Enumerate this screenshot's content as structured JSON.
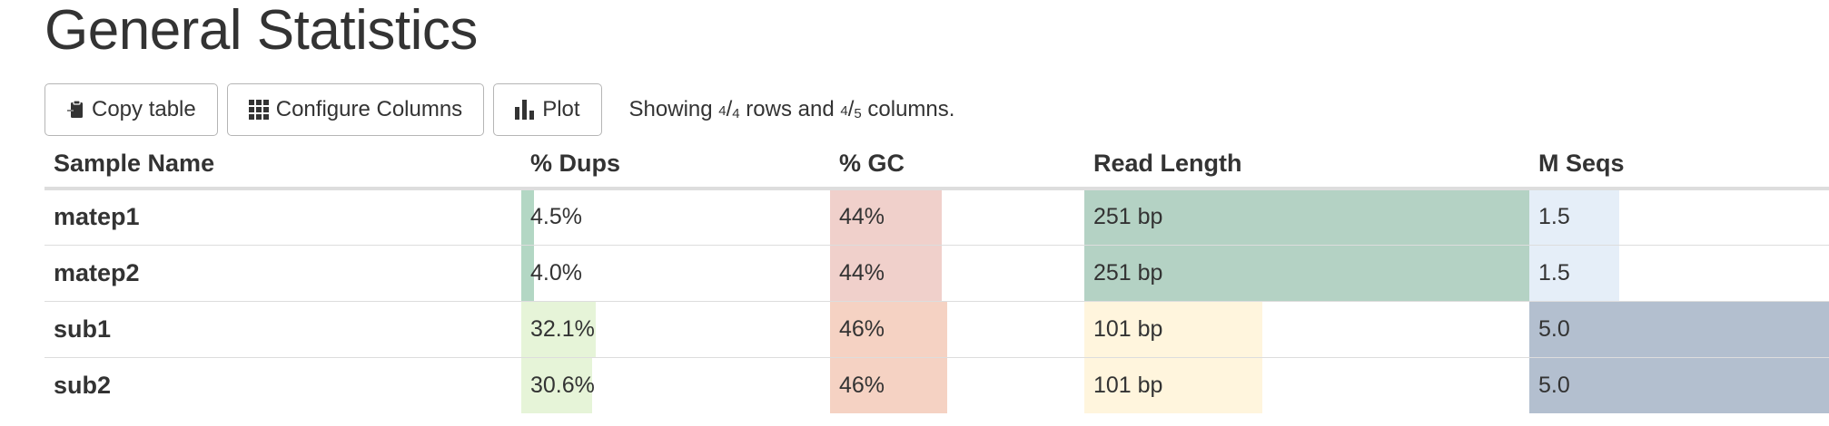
{
  "page": {
    "title": "General Statistics"
  },
  "toolbar": {
    "copy_label": "Copy table",
    "configure_label": "Configure Columns",
    "plot_label": "Plot",
    "summary": {
      "prefix": "Showing ",
      "rows_shown": "4",
      "rows_total": "4",
      "middle": " rows and ",
      "cols_shown": "4",
      "cols_total": "5",
      "suffix": " columns."
    }
  },
  "table": {
    "headers": [
      "Sample Name",
      "% Dups",
      "% GC",
      "Read Length",
      "M Seqs"
    ],
    "rows": [
      {
        "name": "matep1",
        "dups": "4.5%",
        "gc": "44%",
        "read_length": "251 bp",
        "m_seqs": "1.5"
      },
      {
        "name": "matep2",
        "dups": "4.0%",
        "gc": "44%",
        "read_length": "251 bp",
        "m_seqs": "1.5"
      },
      {
        "name": "sub1",
        "dups": "32.1%",
        "gc": "46%",
        "read_length": "101 bp",
        "m_seqs": "5.0"
      },
      {
        "name": "sub2",
        "dups": "30.6%",
        "gc": "46%",
        "read_length": "101 bp",
        "m_seqs": "5.0"
      }
    ],
    "bar_fractions": {
      "dups": [
        0.04,
        0.04,
        0.24,
        0.23
      ],
      "gc": [
        0.44,
        0.44,
        0.46,
        0.46
      ],
      "read_length": [
        1.0,
        1.0,
        0.4,
        0.4
      ],
      "m_seqs": [
        0.3,
        0.3,
        1.0,
        1.0
      ]
    },
    "bar_colors": {
      "dups": [
        "#b3d7c4",
        "#b3d7c4",
        "#e6f4d8",
        "#e6f4d8"
      ],
      "gc": [
        "#f0d0cb",
        "#f0d0cb",
        "#f5d2c3",
        "#f5d2c3"
      ],
      "read_length": [
        "#b4d2c4",
        "#b4d2c4",
        "#fff5dd",
        "#fff5dd"
      ],
      "m_seqs": [
        "#e5eef8",
        "#e5eef8",
        "#b3bfcf",
        "#b3bfcf"
      ]
    }
  }
}
